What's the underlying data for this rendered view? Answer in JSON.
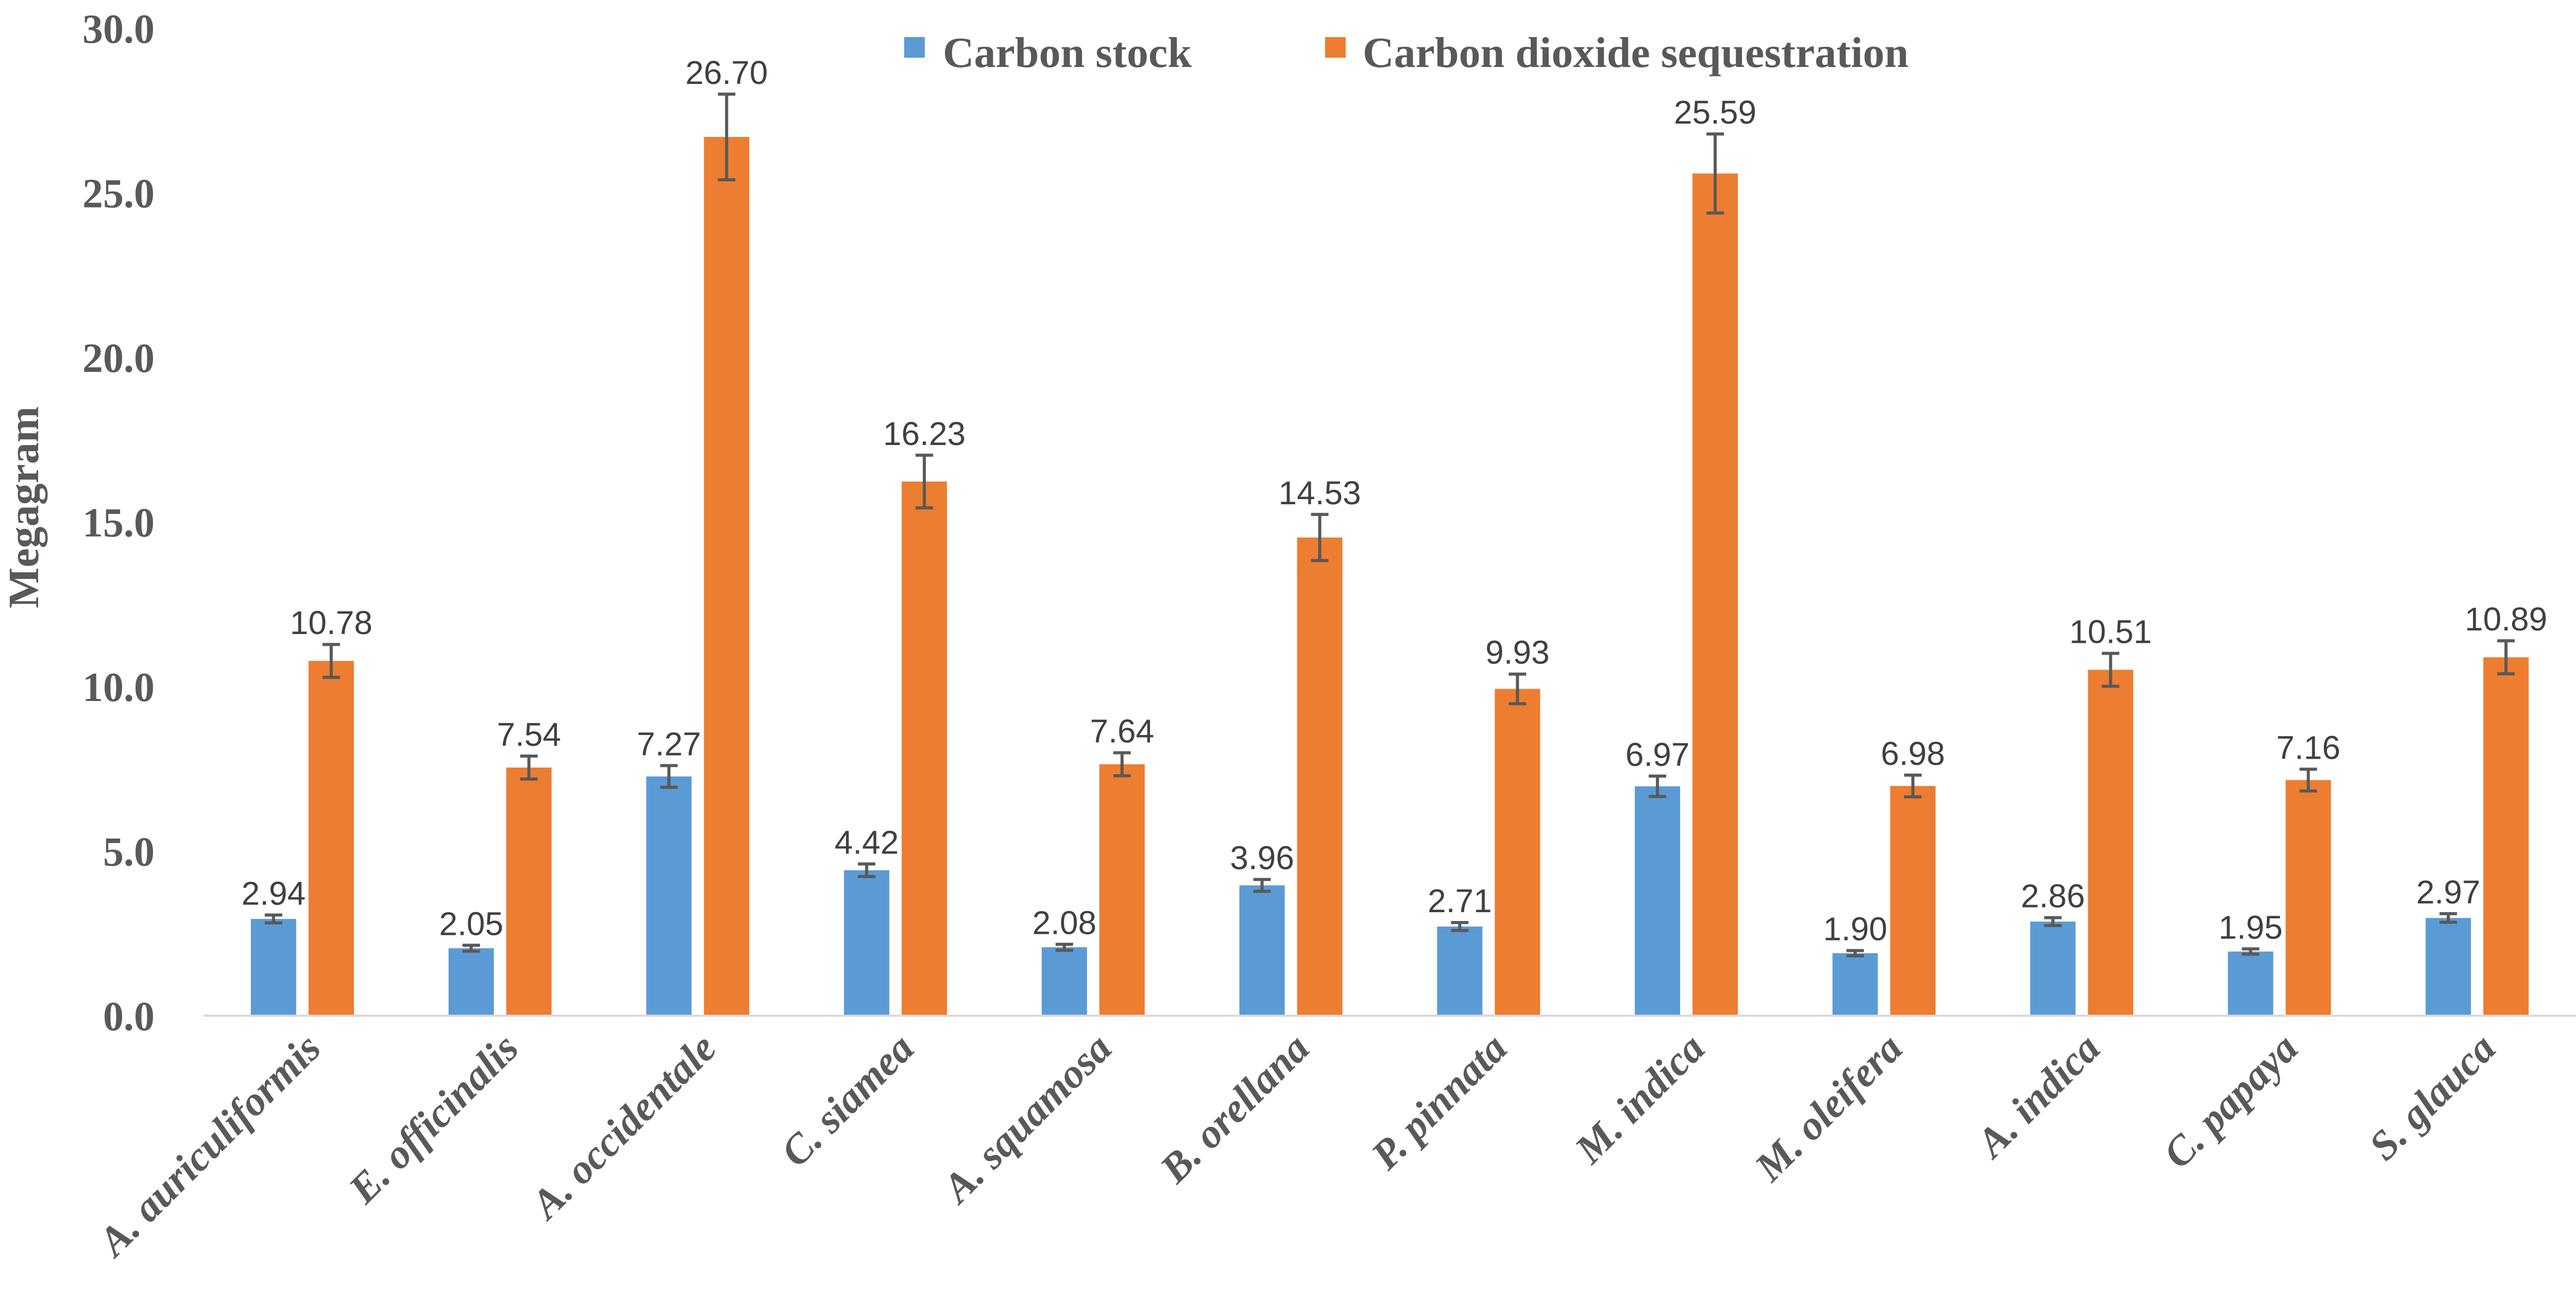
{
  "chart_data": {
    "type": "bar",
    "title": "",
    "xlabel": "",
    "ylabel": "Megagram",
    "ylim": [
      0,
      30
    ],
    "yticks": [
      "0.0",
      "5.0",
      "10.0",
      "15.0",
      "20.0",
      "25.0",
      "30.0"
    ],
    "grid": false,
    "legend_position": "top",
    "categories": [
      "A. auriculiformis",
      "E. officinalis",
      "A. occidentale",
      "C. siamea",
      "A. squamosa",
      "B. orellana",
      "P. pinnata",
      "M. indica",
      "M. oleifera",
      "A. indica",
      "C. papaya",
      "S. glauca"
    ],
    "series": [
      {
        "name": "Carbon stock",
        "color": "#5b9bd5",
        "values": [
          2.94,
          2.05,
          7.27,
          4.42,
          2.08,
          3.96,
          2.71,
          6.97,
          1.9,
          2.86,
          1.95,
          2.97
        ],
        "labels": [
          "2.94",
          "2.05",
          "7.27",
          "4.42",
          "2.08",
          "3.96",
          "2.71",
          "6.97",
          "1.90",
          "2.86",
          "1.95",
          "2.97"
        ],
        "errors": [
          0.12,
          0.09,
          0.33,
          0.19,
          0.09,
          0.18,
          0.12,
          0.31,
          0.08,
          0.12,
          0.08,
          0.13
        ]
      },
      {
        "name": "Carbon dioxide sequestration",
        "color": "#ed7d31",
        "values": [
          10.78,
          7.54,
          26.7,
          16.23,
          7.64,
          14.53,
          9.93,
          25.59,
          6.98,
          10.51,
          7.16,
          10.89
        ],
        "labels": [
          "10.78",
          "7.54",
          "26.70",
          "16.23",
          "7.64",
          "14.53",
          "9.93",
          "25.59",
          "6.98",
          "10.51",
          "7.16",
          "10.89"
        ],
        "errors": [
          0.5,
          0.35,
          1.3,
          0.8,
          0.35,
          0.7,
          0.45,
          1.2,
          0.33,
          0.5,
          0.33,
          0.5
        ]
      }
    ]
  }
}
